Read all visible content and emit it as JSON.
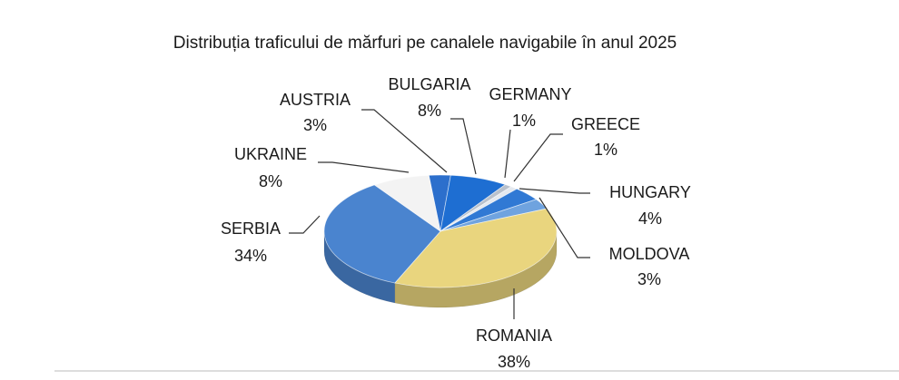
{
  "chart_data": {
    "type": "pie",
    "title": "Distribuția traficului de mărfuri pe canalele navigabile în anul 2025",
    "categories": [
      "AUSTRIA",
      "BULGARIA",
      "GERMANY",
      "GREECE",
      "HUNGARY",
      "MOLDOVA",
      "ROMANIA",
      "SERBIA",
      "UKRAINE"
    ],
    "values": [
      3,
      8,
      1,
      1,
      4,
      3,
      38,
      34,
      8
    ],
    "value_labels": [
      "3%",
      "8%",
      "1%",
      "1%",
      "4%",
      "3%",
      "38%",
      "34%",
      "8%"
    ],
    "colors": [
      "#2c6fcc",
      "#1e6ed2",
      "#b9c1cc",
      "#e4e9ef",
      "#3079d4",
      "#6fa3df",
      "#e9d57e",
      "#4a84cf",
      "#f3f3f3"
    ]
  }
}
